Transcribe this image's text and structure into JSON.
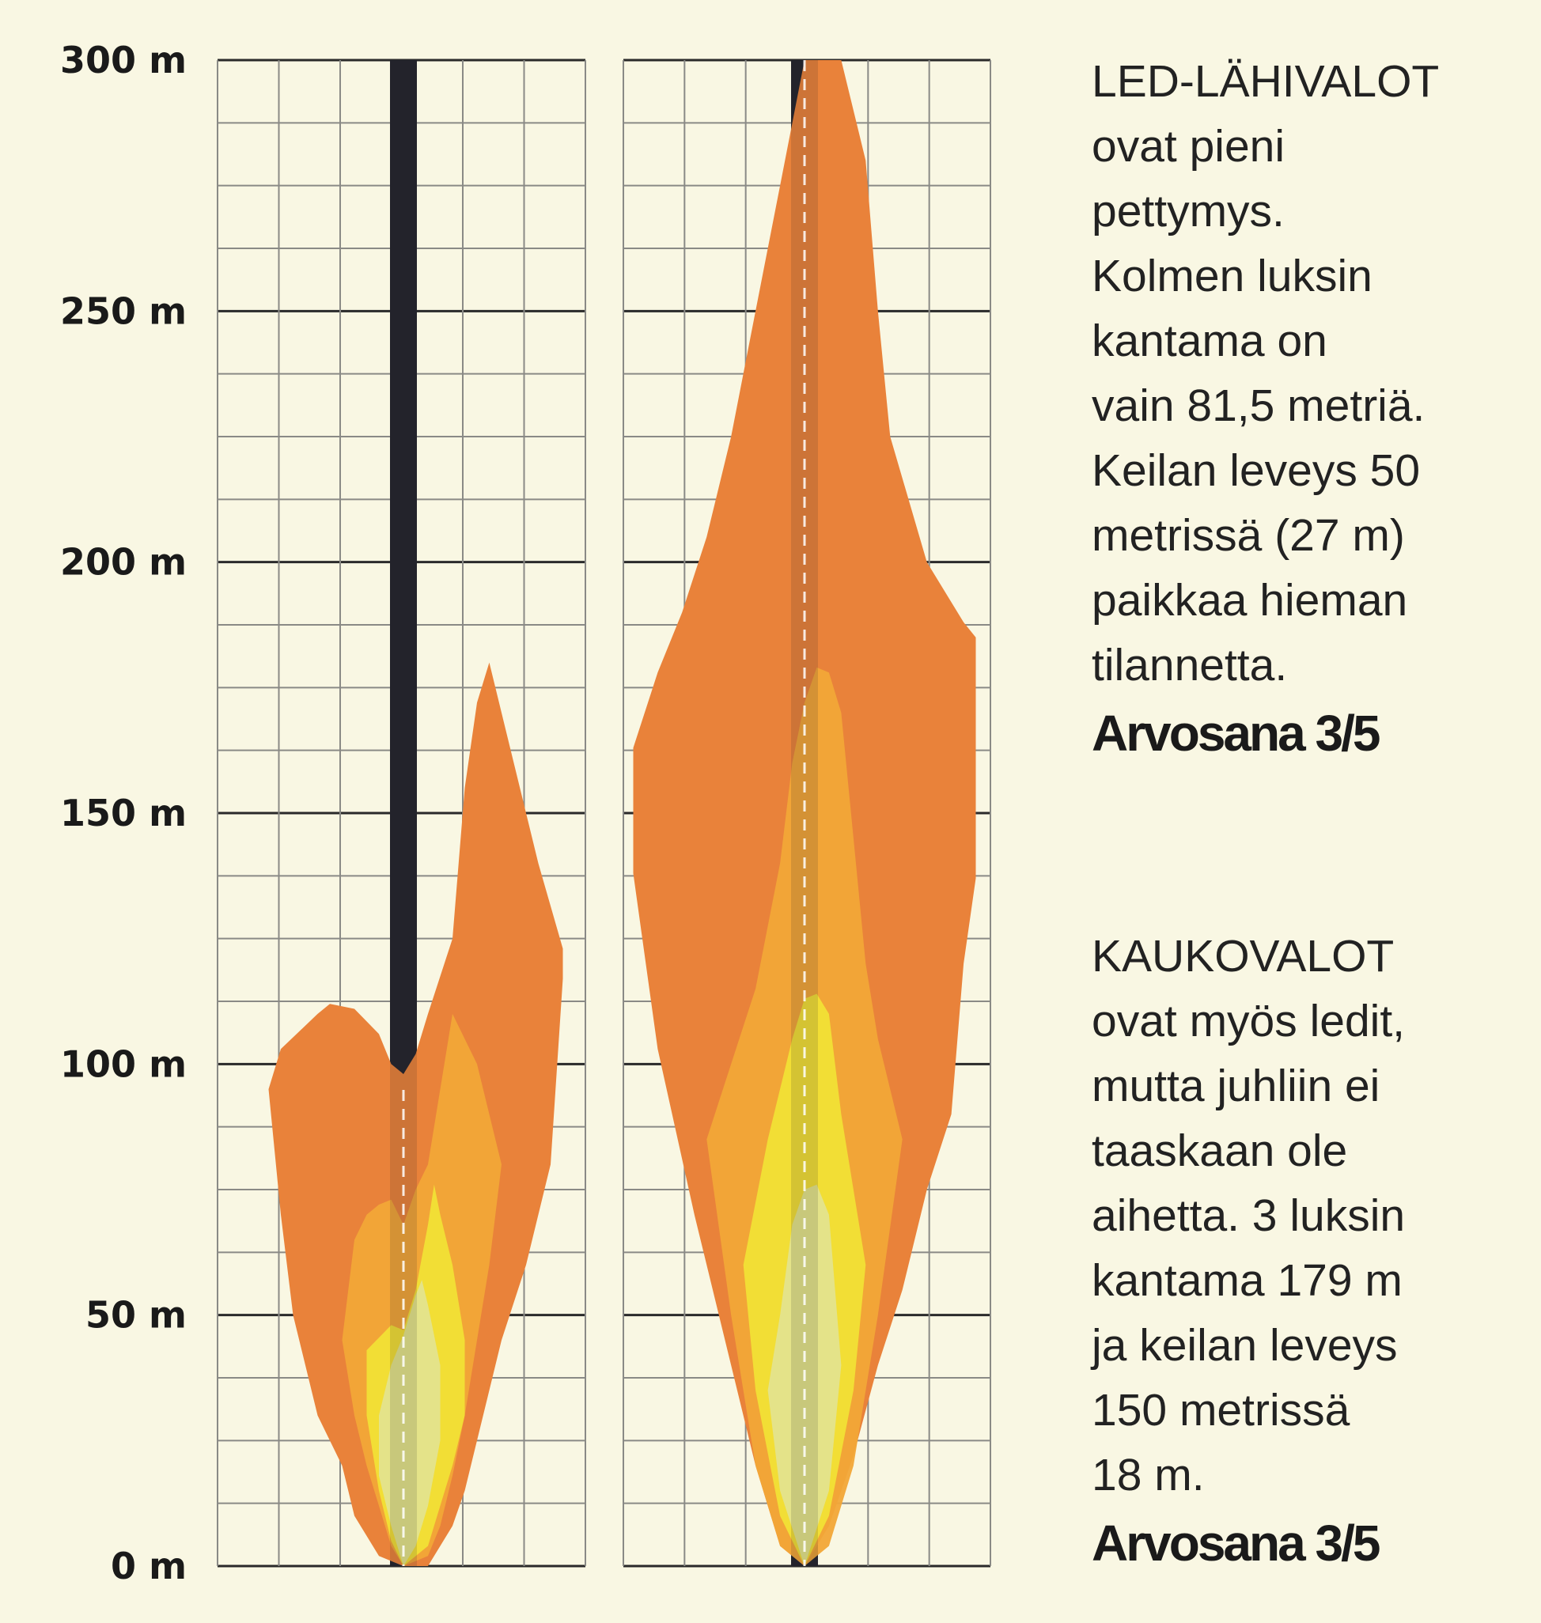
{
  "chart_data": {
    "type": "area",
    "y_axis": {
      "ticks": [
        "300 m",
        "250 m",
        "200 m",
        "150 m",
        "100 m",
        "50 m",
        "0 m"
      ],
      "tick_values": [
        300,
        250,
        200,
        150,
        100,
        50,
        0
      ],
      "range": [
        0,
        300
      ],
      "unit": "m"
    },
    "grid": true,
    "colors": {
      "background": "#f9f7e3",
      "road": "#24242c",
      "lux_outer": "#e9823a",
      "lux_mid": "#f2a637",
      "lux_inner": "#f1e035",
      "lux_core": "#e3e38e",
      "grid_major": "#2a2a2a",
      "grid_minor": "#8a8a86"
    },
    "panels": [
      {
        "name": "LED-LÄHIVALOT",
        "road_end_m": 98,
        "series": [
          {
            "level": "outer",
            "x": [
              -22,
              -20,
              -14,
              -12,
              -8,
              -4,
              -2,
              0,
              2,
              4,
              8,
              10,
              12,
              14,
              16,
              20,
              22,
              26,
              26,
              24,
              20,
              16,
              14,
              12,
              10,
              8,
              6,
              4,
              0,
              -4,
              -8,
              -10,
              -14,
              -18,
              -20,
              -22
            ],
            "y": [
              95,
              103,
              110,
              112,
              111,
              106,
              100,
              98,
              102,
              110,
              125,
              155,
              172,
              180,
              170,
              150,
              140,
              123,
              117,
              80,
              60,
              45,
              35,
              25,
              15,
              8,
              4,
              0,
              0,
              2,
              10,
              20,
              30,
              50,
              70,
              95
            ]
          },
          {
            "level": "mid",
            "x": [
              -6,
              -4,
              -2,
              0,
              2,
              4,
              6,
              8,
              12,
              16,
              14,
              12,
              10,
              8,
              6,
              4,
              0,
              -2,
              -4,
              -6,
              -8,
              -10,
              -8
            ],
            "y": [
              70,
              72,
              73,
              68,
              75,
              80,
              95,
              110,
              100,
              80,
              60,
              45,
              30,
              18,
              8,
              2,
              0,
              4,
              12,
              20,
              30,
              45,
              65
            ]
          },
          {
            "level": "inner",
            "x": [
              -6,
              -2,
              0,
              2,
              4,
              5,
              6,
              8,
              10,
              10,
              8,
              6,
              4,
              0,
              -2,
              -4,
              -6
            ],
            "y": [
              43,
              48,
              47,
              55,
              68,
              76,
              70,
              60,
              45,
              30,
              20,
              12,
              4,
              0,
              5,
              15,
              30
            ]
          },
          {
            "level": "core",
            "x": [
              -4,
              -2,
              0,
              2,
              3,
              4,
              6,
              6,
              4,
              2,
              0,
              -2,
              -4
            ],
            "y": [
              30,
              40,
              46,
              54,
              57,
              52,
              40,
              25,
              12,
              4,
              0,
              8,
              18
            ]
          }
        ]
      },
      {
        "name": "KAUKOVALOT",
        "road_end_m": 300,
        "series": [
          {
            "level": "outer",
            "x": [
              -28,
              -24,
              -20,
              -16,
              -12,
              -8,
              -4,
              0,
              6,
              10,
              12,
              14,
              20,
              26,
              28,
              28,
              26,
              24,
              20,
              16,
              12,
              8,
              4,
              0,
              -4,
              -8,
              -12,
              -18,
              -24,
              -28
            ],
            "y": [
              163,
              178,
              190,
              205,
              225,
              250,
              275,
              300,
              300,
              280,
              250,
              225,
              200,
              188,
              185,
              137,
              120,
              90,
              75,
              55,
              40,
              22,
              8,
              0,
              4,
              20,
              40,
              70,
              103,
              138
            ]
          },
          {
            "level": "mid",
            "x": [
              -16,
              -12,
              -8,
              -4,
              -2,
              0,
              2,
              4,
              6,
              8,
              10,
              12,
              16,
              12,
              8,
              4,
              0,
              -4,
              -8,
              -12
            ],
            "y": [
              85,
              100,
              115,
              140,
              160,
              172,
              179,
              178,
              170,
              145,
              120,
              105,
              85,
              50,
              20,
              4,
              0,
              4,
              20,
              50
            ]
          },
          {
            "level": "inner",
            "x": [
              -10,
              -6,
              -2,
              0,
              2,
              4,
              6,
              10,
              8,
              4,
              0,
              -4,
              -8
            ],
            "y": [
              60,
              85,
              105,
              113,
              114,
              110,
              90,
              60,
              35,
              10,
              0,
              10,
              35
            ]
          },
          {
            "level": "core",
            "x": [
              -6,
              -4,
              -2,
              0,
              2,
              4,
              6,
              4,
              0,
              -4
            ],
            "y": [
              35,
              50,
              68,
              75,
              76,
              70,
              40,
              15,
              0,
              15
            ]
          }
        ]
      }
    ]
  },
  "panels_text": [
    {
      "description": "LED-LÄHIVALOT\novat pieni\npettymys.\nKolmen luksin\nkantama on\nvain 81,5 metriä.\nKeilan leveys 50\nmetrissä (27 m)\npaikkaa hieman\ntilannetta.",
      "grade": "Arvosana 3/5"
    },
    {
      "description": "KAUKOVALOT\novat myös ledit,\nmutta juhliin ei\ntaaskaan ole\naihetta. 3 luksin\nkantama 179 m\nja keilan leveys\n150 metrissä\n18 m.",
      "grade": "Arvosana 3/5"
    }
  ]
}
